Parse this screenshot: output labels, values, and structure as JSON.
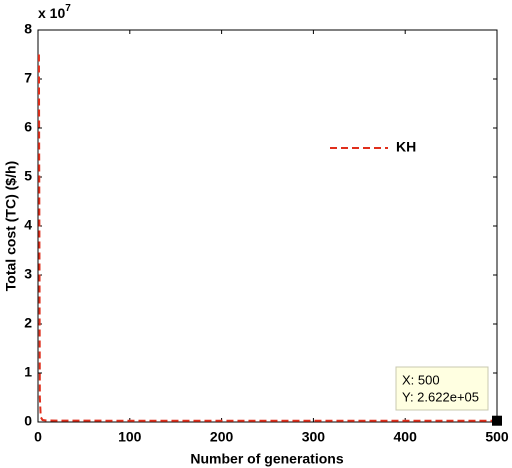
{
  "chart_data": {
    "type": "line",
    "xlabel": "Number of generations",
    "ylabel": "Total cost (TC) ($/h)",
    "y_multiplier": {
      "base": "x 10",
      "exponent": "7"
    },
    "xlim": [
      0,
      500
    ],
    "ylim": [
      0,
      8
    ],
    "xticks": [
      0,
      100,
      200,
      300,
      400,
      500
    ],
    "yticks": [
      0,
      1,
      2,
      3,
      4,
      5,
      6,
      7,
      8
    ],
    "legend_position": "upper right",
    "series": [
      {
        "name": "KH",
        "color": "#e02f1c",
        "x": [
          1,
          2,
          3,
          5,
          10,
          50,
          100,
          500
        ],
        "values": [
          7.5,
          0.5,
          0.1,
          0.04,
          0.03,
          0.027,
          0.0265,
          0.02622
        ]
      }
    ],
    "datatip": {
      "x": 500,
      "y": 0.02622,
      "lines": [
        "X: 500",
        "Y: 2.622e+05"
      ]
    }
  }
}
